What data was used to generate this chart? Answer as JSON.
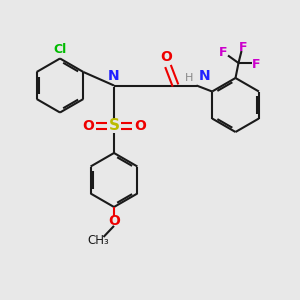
{
  "background_color": "#e8e8e8",
  "bond_color": "#1a1a1a",
  "cl_color": "#00bb00",
  "n_color": "#2020ff",
  "o_color": "#ee0000",
  "s_color": "#bbbb00",
  "f_color": "#cc00cc",
  "h_color": "#888888",
  "lw": 1.5,
  "dbo": 0.07,
  "figsize": [
    3.0,
    3.0
  ],
  "dpi": 100,
  "xlim": [
    0,
    10
  ],
  "ylim": [
    0,
    10
  ]
}
